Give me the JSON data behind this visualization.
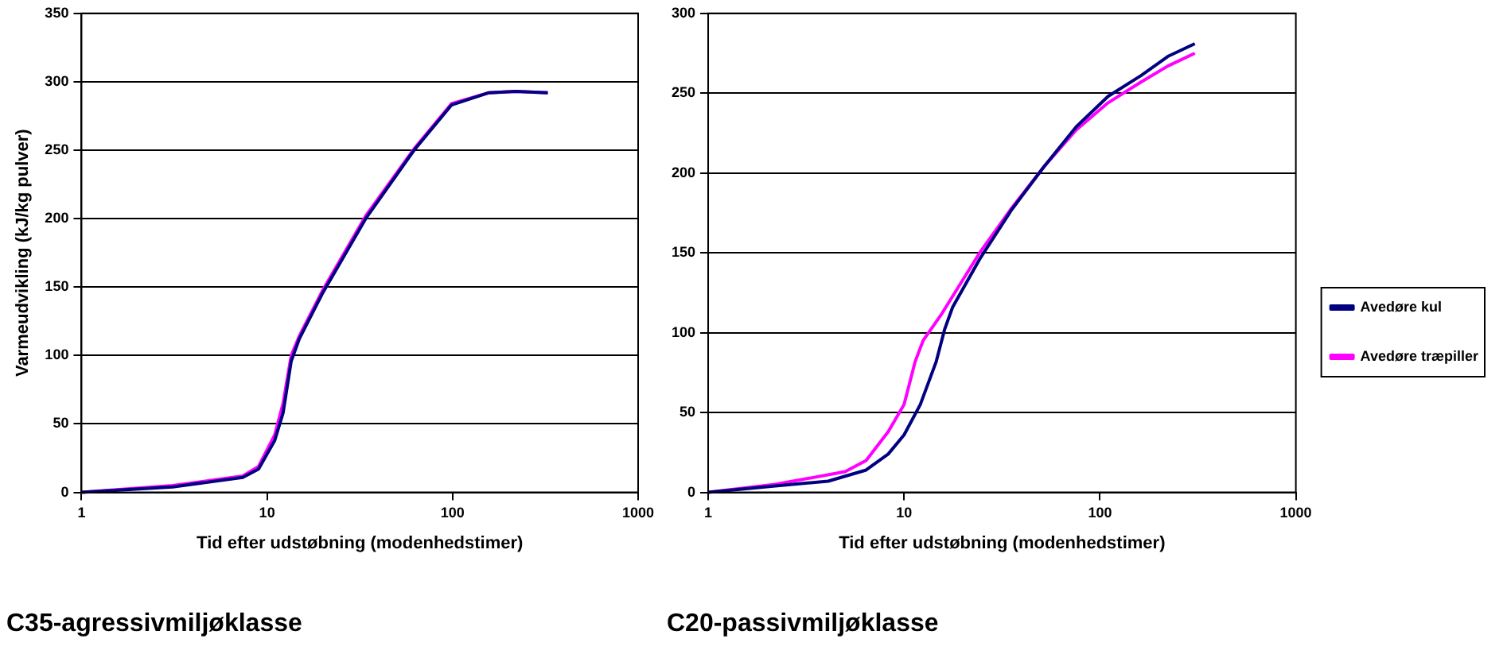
{
  "chart_data": [
    {
      "type": "line",
      "title": "C35-agressivmiljøklasse",
      "xlabel": "Tid efter udstøbning (modenhedstimer)",
      "ylabel": "Varmeudvikling (kJ/kg pulver)",
      "log": "x",
      "xlim": [
        1,
        1000
      ],
      "xticks": [
        1,
        10,
        100,
        1000
      ],
      "ylim": [
        0,
        350
      ],
      "yticks": [
        0,
        50,
        100,
        150,
        200,
        250,
        300,
        350
      ],
      "grid": "y",
      "marker": "none",
      "series": [
        {
          "color": "#000080",
          "x": [
            1,
            3.1,
            7.4,
            9,
            11,
            12.2,
            13.5,
            14.9,
            20,
            34,
            62,
            98.6,
            157,
            219,
            326
          ],
          "values": [
            0,
            4,
            11,
            17,
            38,
            58,
            96,
            112,
            146,
            200,
            250,
            283,
            292,
            293,
            292
          ]
        },
        {
          "color": "#ff00ff",
          "x": [
            1,
            3.1,
            7.4,
            9,
            11,
            12.2,
            13.5,
            14.9,
            20,
            34,
            62,
            98.6,
            157,
            219,
            326
          ],
          "values": [
            0,
            5,
            12,
            19,
            42,
            65,
            100,
            114,
            148,
            202,
            251,
            284,
            292,
            293,
            292
          ]
        }
      ]
    },
    {
      "type": "line",
      "title": "C20-passivmiljøklasse",
      "xlabel": "Tid efter udstøbning (modenhedstimer)",
      "log": "x",
      "xlim": [
        1,
        1000
      ],
      "xticks": [
        1,
        10,
        100,
        1000
      ],
      "ylim": [
        0,
        300
      ],
      "yticks": [
        0,
        50,
        100,
        150,
        200,
        250,
        300
      ],
      "grid": "y",
      "marker": "none",
      "legend": "right",
      "series": [
        {
          "name": "Avedøre kul",
          "color": "#000080",
          "x": [
            1,
            2.2,
            4.1,
            6.4,
            8.3,
            10,
            12.1,
            14.6,
            16.1,
            17.7,
            24.3,
            35.4,
            51.8,
            75.7,
            110,
            162,
            222,
            305
          ],
          "values": [
            0,
            4,
            7,
            14,
            24,
            36,
            55,
            82,
            102,
            116,
            146,
            177,
            204,
            229,
            248,
            261,
            273,
            281
          ]
        },
        {
          "name": "Avedøre træpiller",
          "color": "#ff00ff",
          "x": [
            1,
            2.2,
            5,
            6.4,
            8.3,
            10,
            11.4,
            12.5,
            15.6,
            24.3,
            35.4,
            51.8,
            75.7,
            110,
            162,
            222,
            305
          ],
          "values": [
            0,
            5,
            13,
            20,
            38,
            55,
            82,
            95,
            112,
            150,
            178,
            204,
            227,
            244,
            257,
            267,
            275
          ]
        }
      ]
    }
  ]
}
